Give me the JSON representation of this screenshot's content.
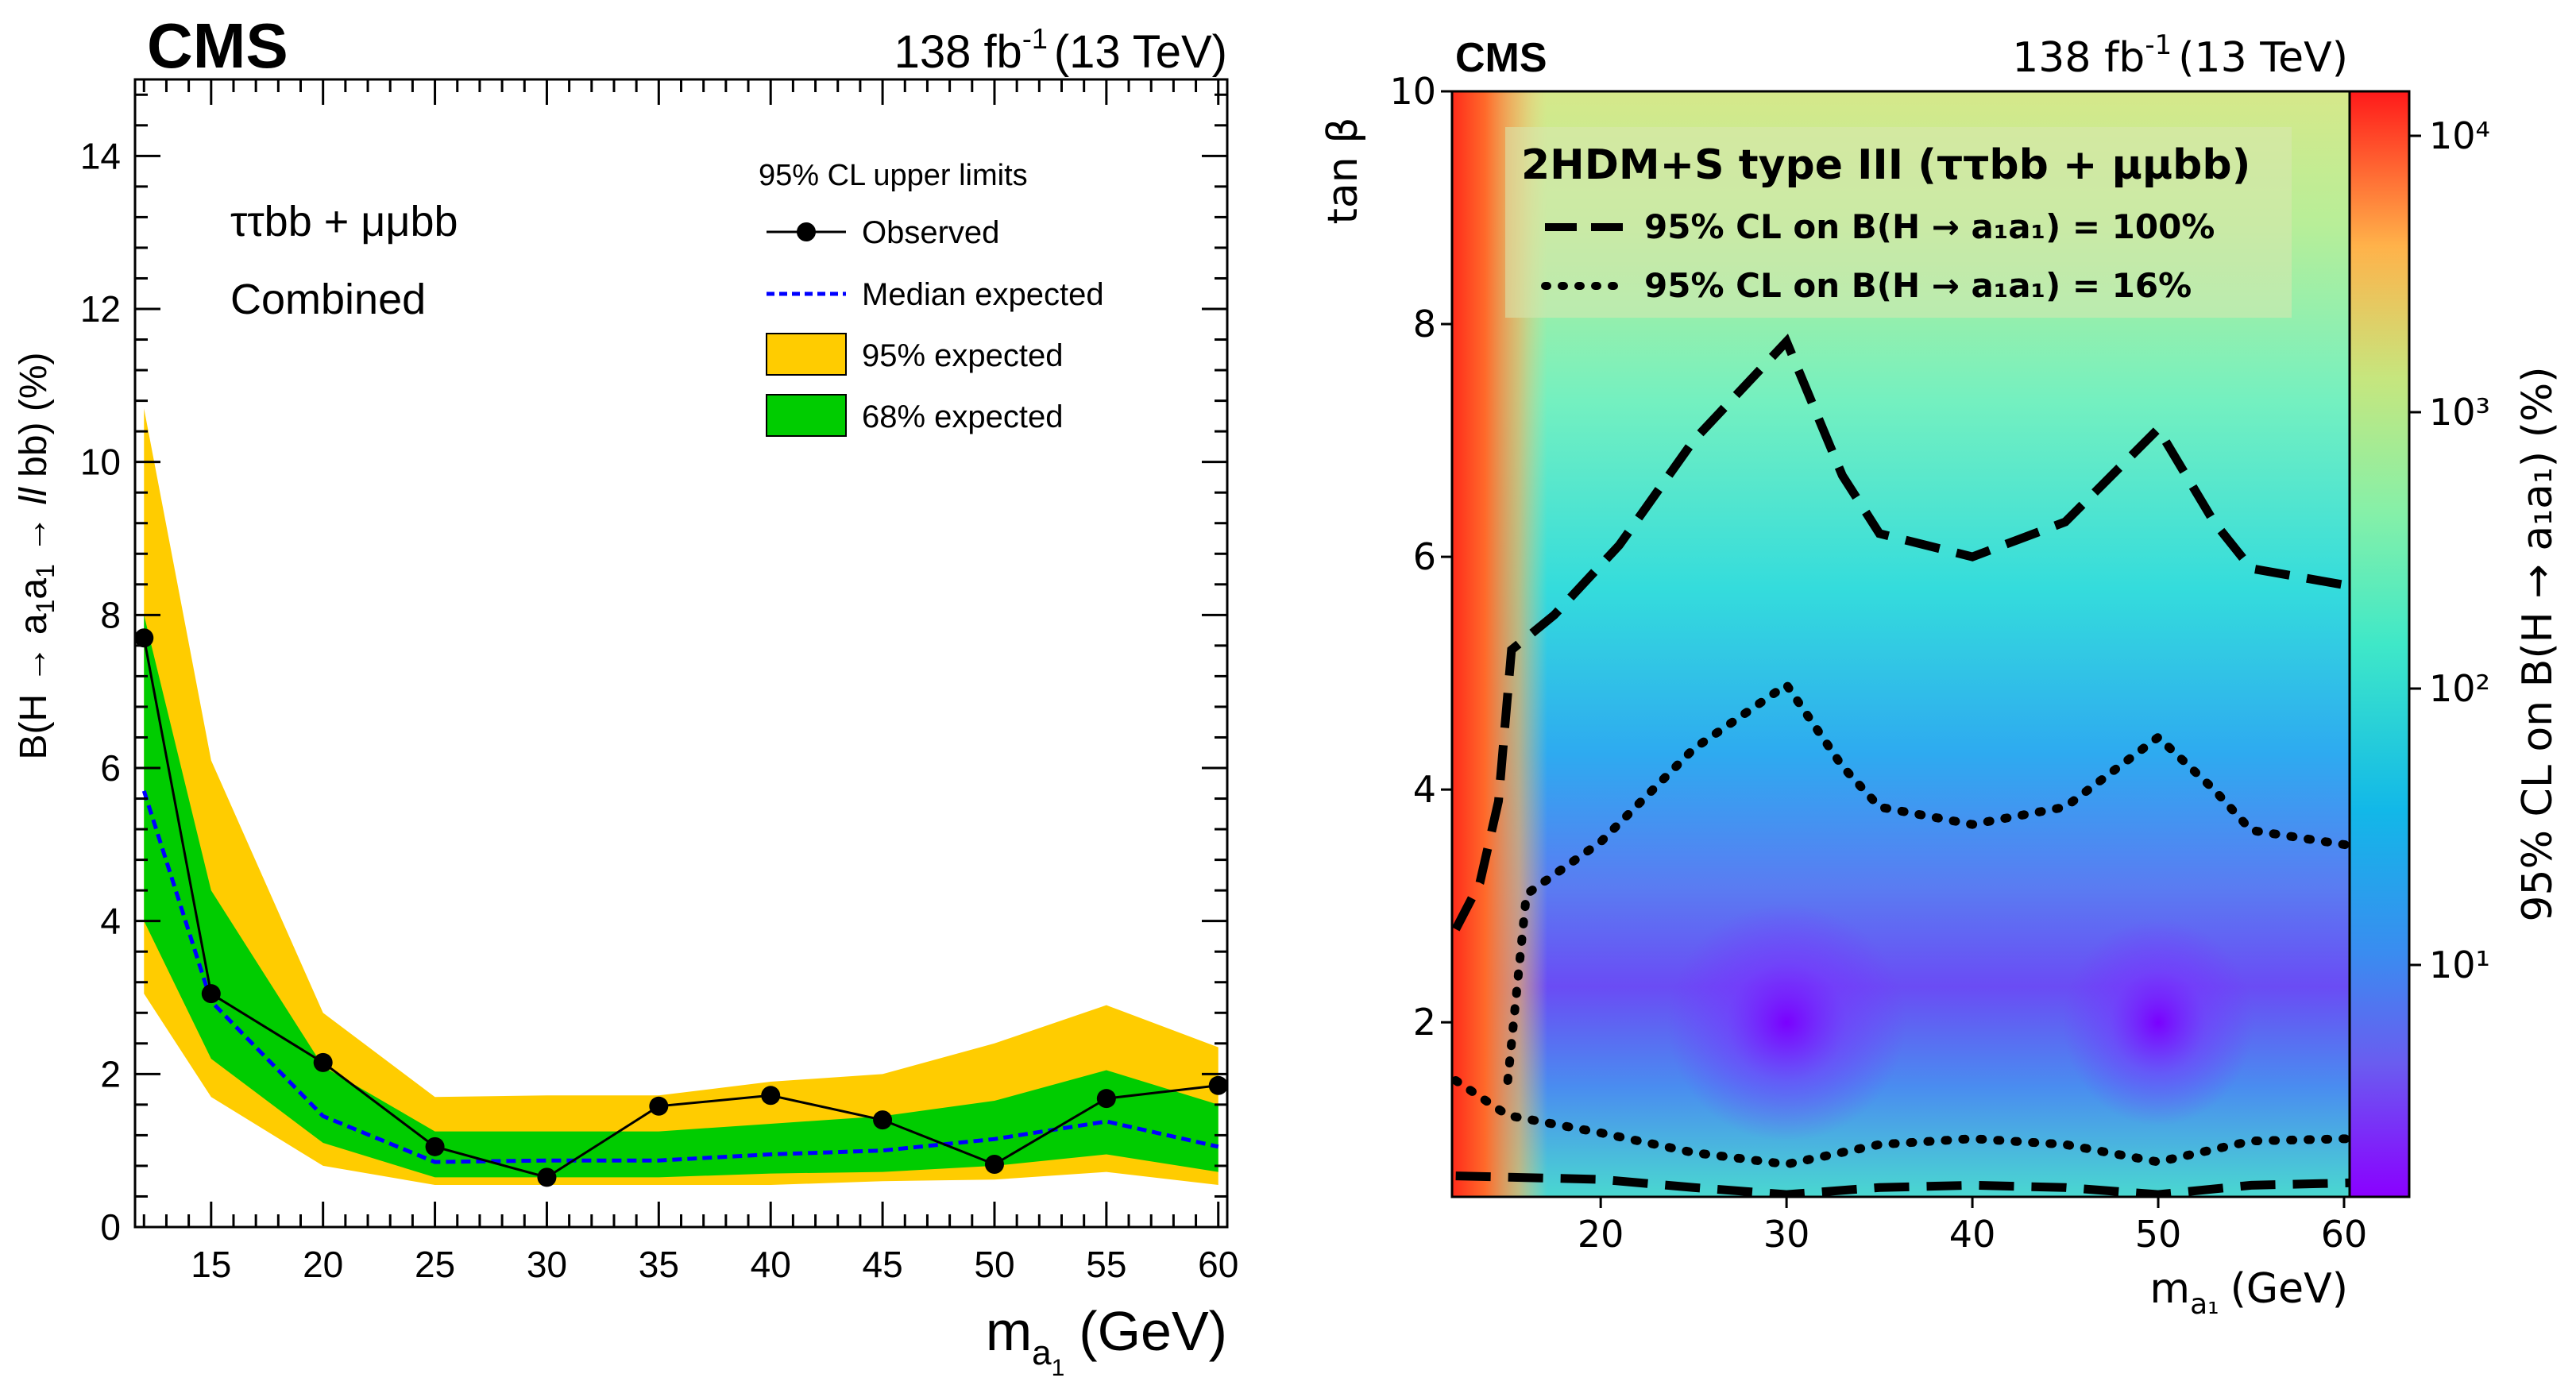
{
  "left_panel": {
    "experiment": "CMS",
    "lumi": "138 fb",
    "lumi_exp": "-1",
    "energy": "(13 TeV)",
    "channel": "ττbb + μμbb",
    "subtitle": "Combined",
    "xlabel_main": "m",
    "xlabel_sub1": "a",
    "xlabel_sub2": "1",
    "xlabel_unit": "(GeV)",
    "ylabel": "B(H → a₁a₁ → ll bb) (%)",
    "ylabel_parts": {
      "pre": "B(H → a",
      "sub1": "1",
      "mid": "a",
      "sub2": "1",
      "post": " → ",
      "ll": "ll",
      "end": " bb) (%)"
    },
    "legend_title": "95% CL upper limits",
    "legend_observed": "Observed",
    "legend_median": "Median expected",
    "legend_95": "95% expected",
    "legend_68": "68% expected"
  },
  "right_panel": {
    "experiment": "CMS",
    "lumi": "138 fb",
    "lumi_exp": "-1",
    "energy": "(13 TeV)",
    "box_title": "2HDM+S type III (ττbb + μμbb)",
    "line_dashed": "95% CL on B(H → a₁a₁) = 100%",
    "line_dotted": "95% CL on B(H → a₁a₁) = 16%",
    "ylabel": "tan β",
    "xlabel": "m",
    "xlabel_sub": "a₁",
    "xlabel_unit": "(GeV)",
    "zlabel": "95% CL on B(H → a₁a₁) (%)"
  },
  "colors": {
    "band95": "#ffcc00",
    "band68": "#00cc00",
    "median": "#0000ff",
    "observed": "#000000"
  },
  "chart_data": [
    {
      "type": "line",
      "x": [
        12,
        15,
        20,
        25,
        30,
        35,
        40,
        45,
        50,
        55,
        60
      ],
      "xlim": [
        11.6,
        60.4
      ],
      "ylim": [
        0,
        15
      ],
      "xticks": [
        15,
        20,
        25,
        30,
        35,
        40,
        45,
        50,
        55,
        60
      ],
      "yticks": [
        0,
        2,
        4,
        6,
        8,
        10,
        12,
        14
      ],
      "series": [
        {
          "name": "Observed",
          "values": [
            7.7,
            3.05,
            2.15,
            1.05,
            0.65,
            1.58,
            1.72,
            1.4,
            0.82,
            1.68,
            1.85
          ]
        },
        {
          "name": "Median expected",
          "values": [
            5.7,
            2.95,
            1.45,
            0.85,
            0.87,
            0.87,
            0.95,
            1.0,
            1.15,
            1.38,
            1.05
          ]
        },
        {
          "name": "68% expected",
          "low": [
            4.0,
            2.2,
            1.1,
            0.65,
            0.65,
            0.65,
            0.7,
            0.72,
            0.8,
            0.95,
            0.72
          ],
          "high": [
            8.0,
            4.4,
            2.1,
            1.25,
            1.25,
            1.25,
            1.35,
            1.45,
            1.65,
            2.05,
            1.6
          ]
        },
        {
          "name": "95% expected",
          "low": [
            3.05,
            1.7,
            0.8,
            0.55,
            0.55,
            0.55,
            0.55,
            0.6,
            0.62,
            0.72,
            0.55
          ],
          "high": [
            10.7,
            6.1,
            2.8,
            1.7,
            1.72,
            1.72,
            1.9,
            2.0,
            2.4,
            2.9,
            2.35
          ]
        }
      ]
    },
    {
      "type": "heatmap",
      "xlim": [
        12,
        60.3
      ],
      "ylim": [
        0.5,
        10
      ],
      "xticks": [
        20,
        30,
        40,
        50,
        60
      ],
      "yticks": [
        2,
        4,
        6,
        8,
        10
      ],
      "zscale": "log",
      "zticks": [
        "10¹",
        "10²",
        "10³",
        "10⁴"
      ],
      "contours": [
        {
          "name": "95% CL on B(H → a₁a₁) = 100%",
          "style": "dashed",
          "upper": {
            "x": [
              12.2,
              13.5,
              14.5,
              15.2,
              17.5,
              21,
              25,
              30,
              33,
              35,
              40,
              45,
              50,
              53,
              55,
              60.3
            ],
            "y": [
              2.8,
              3.2,
              3.9,
              5.2,
              5.5,
              6.1,
              7.0,
              7.85,
              6.7,
              6.2,
              6.0,
              6.3,
              7.1,
              6.3,
              5.9,
              5.75
            ]
          },
          "lower": {
            "x": [
              12.2,
              20,
              25,
              30,
              35,
              40,
              45,
              50,
              55,
              60.3
            ],
            "y": [
              0.68,
              0.65,
              0.58,
              0.52,
              0.58,
              0.6,
              0.58,
              0.52,
              0.6,
              0.62
            ]
          }
        },
        {
          "name": "95% CL on B(H → a₁a₁) = 16%",
          "style": "dotted",
          "upper": {
            "x": [
              15,
              16,
              20,
              25,
              30,
              33,
              35,
              40,
              45,
              50,
              53,
              55,
              60.3
            ],
            "y": [
              1.5,
              3.1,
              3.55,
              4.35,
              4.9,
              4.2,
              3.85,
              3.7,
              3.85,
              4.45,
              4.0,
              3.65,
              3.52
            ]
          },
          "lower": {
            "x": [
              12.2,
              15,
              20,
              25,
              30,
              35,
              40,
              45,
              50,
              55,
              60.3
            ],
            "y": [
              1.5,
              1.2,
              1.05,
              0.88,
              0.78,
              0.95,
              1.0,
              0.95,
              0.8,
              0.98,
              1.0
            ]
          }
        }
      ]
    }
  ]
}
